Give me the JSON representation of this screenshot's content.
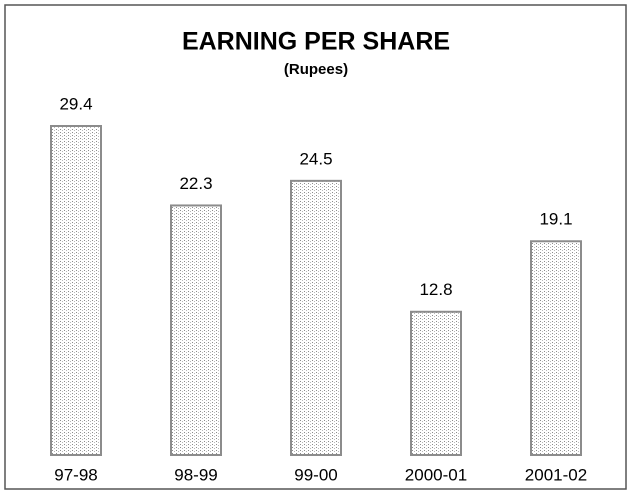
{
  "chart_data": {
    "type": "bar",
    "title": "EARNING PER SHARE",
    "subtitle": "(Rupees)",
    "categories": [
      "97-98",
      "98-99",
      "99-00",
      "2000-01",
      "2001-02"
    ],
    "values": [
      29.4,
      22.3,
      24.5,
      12.8,
      19.1
    ],
    "color": "#8c8c8c"
  }
}
